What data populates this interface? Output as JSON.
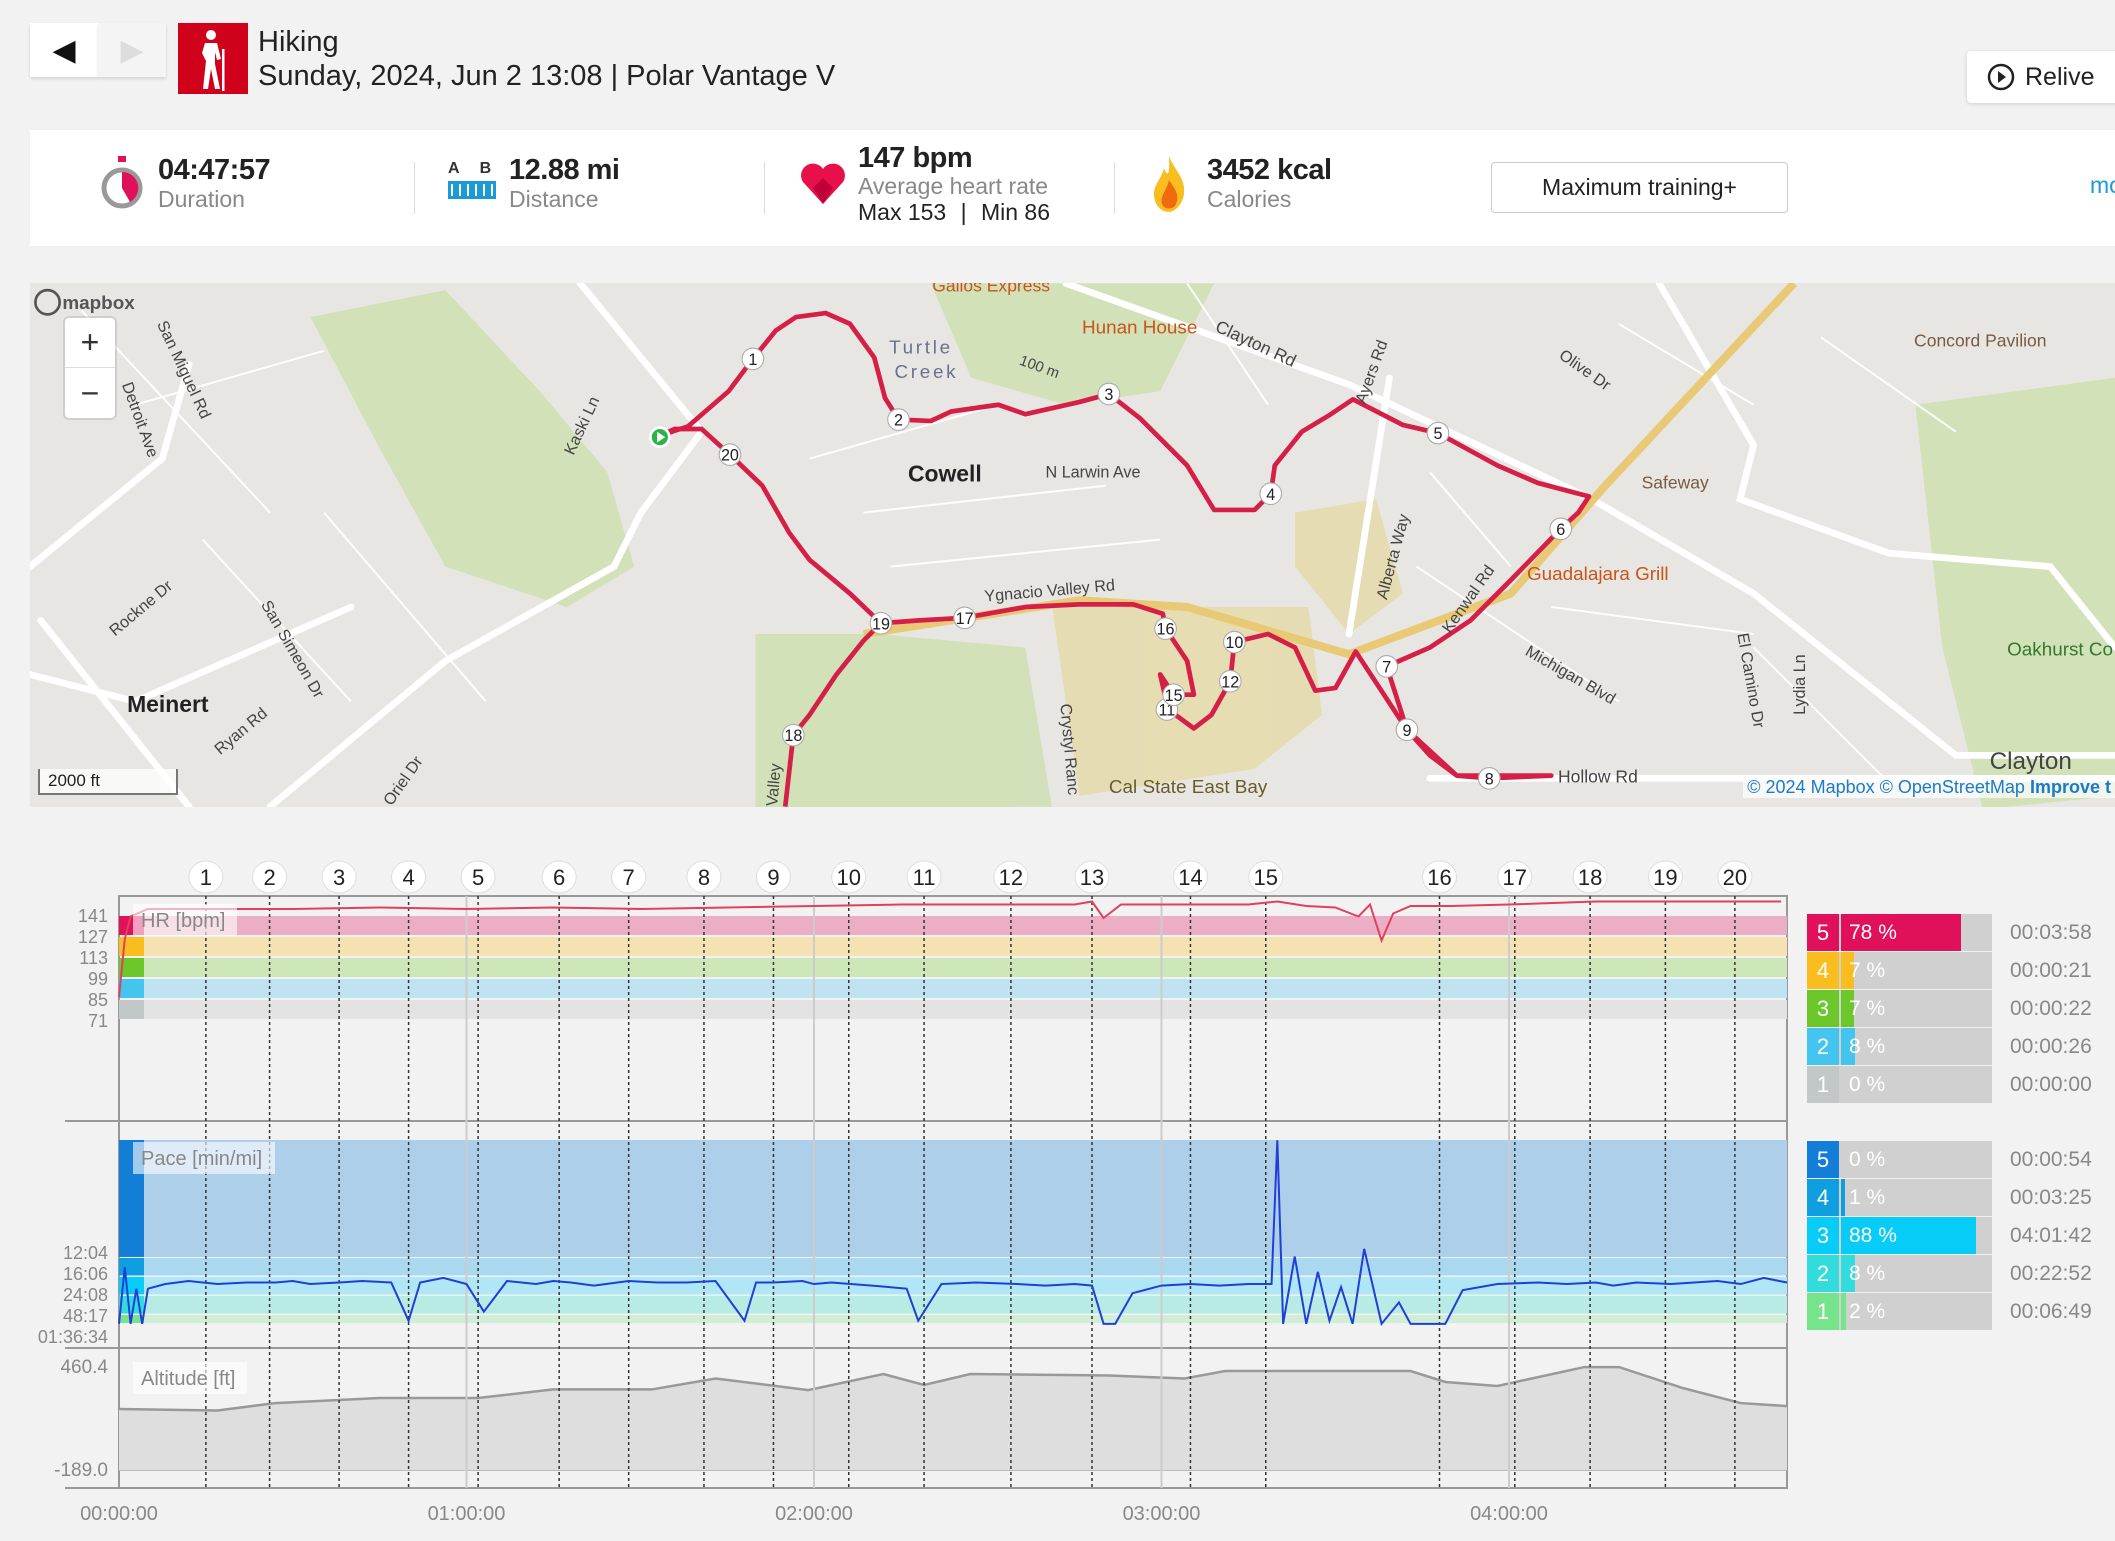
{
  "header": {
    "sport": "Hiking",
    "subtitle": "Sunday, 2024, Jun 2 13:08 | Polar Vantage V",
    "relive_label": "Relive",
    "prev_icon": "triangle-left",
    "next_icon": "triangle-right"
  },
  "summary": {
    "duration": {
      "value": "04:47:57",
      "label": "Duration"
    },
    "distance": {
      "value": "12.88 mi",
      "label": "Distance",
      "icon_text_a": "A",
      "icon_text_b": "B"
    },
    "heart_rate": {
      "value": "147 bpm",
      "label": "Average heart rate",
      "max": "Max 153",
      "min": "Min 86",
      "sep": "|"
    },
    "calories": {
      "value": "3452 kcal",
      "label": "Calories"
    },
    "training_button": "Maximum training+",
    "more_link": "mo"
  },
  "map": {
    "zoom_in": "+",
    "zoom_out": "−",
    "scale": "2000 ft",
    "logo": "mapbox",
    "attribution": "© 2024 Mapbox © OpenStreetMap",
    "improve": "Improve t",
    "places": [
      "Cowell",
      "Meinert",
      "Turtle",
      "Creek",
      "Cal State East Bay",
      "Clayton",
      "Concord Pavilion",
      "Oakhurst Co"
    ],
    "pois": [
      "Gallos Express",
      "Hunan House",
      "Safeway",
      "Guadalajara Grill"
    ],
    "streets": [
      "San Miguel Rd",
      "Detroit Ave",
      "Kaski Ln",
      "Rockne Dr",
      "San Simeon Dr",
      "Ryan Rd",
      "Clayton Rd",
      "Ayers Rd",
      "Olive Dr",
      "N Larwin Ave",
      "Alberta Way",
      "Kenwal Rd",
      "Michigan Blvd",
      "El Camino Dr",
      "Lydia Ln",
      "Crystyl Ranc",
      "Hollow Rd",
      "Ygnacio Valley Rd",
      "Valley",
      "Oriel Dr",
      "100 m"
    ],
    "lap_markers": [
      "1",
      "2",
      "3",
      "4",
      "5",
      "6",
      "7",
      "8",
      "9",
      "10",
      "11",
      "12",
      "15",
      "16",
      "17",
      "18",
      "19",
      "20"
    ],
    "route_color": "#d51f47"
  },
  "chart_data": [
    {
      "type": "line",
      "title": "HR [bpm]",
      "yticks": [
        "141",
        "127",
        "113",
        "99",
        "85",
        "71"
      ],
      "series": [
        {
          "x_min": [
            0,
            1,
            2,
            5,
            15,
            30,
            45,
            60,
            75,
            90,
            105,
            120,
            135,
            150,
            165,
            168,
            170,
            173,
            180,
            195,
            200,
            205,
            210,
            214,
            216,
            218,
            220,
            223,
            230,
            240,
            255,
            270,
            287
          ],
          "y": [
            86,
            125,
            140,
            145,
            145,
            145,
            146,
            145,
            146,
            145,
            146,
            147,
            148,
            148,
            148,
            150,
            139,
            148,
            148,
            148,
            150,
            147,
            146,
            140,
            148,
            124,
            142,
            147,
            147,
            148,
            150,
            150,
            150
          ]
        }
      ],
      "zones": [
        {
          "zone": "5",
          "color": "#e0105a",
          "band": "#ecaec4"
        },
        {
          "zone": "4",
          "color": "#f9bd1f",
          "band": "#f5e2b2"
        },
        {
          "zone": "3",
          "color": "#6cc72b",
          "band": "#cee7b9"
        },
        {
          "zone": "2",
          "color": "#43c5ef",
          "band": "#bfe3f1"
        },
        {
          "zone": "1",
          "color": "#c2c8c8",
          "band": "#e3e3e3"
        }
      ]
    },
    {
      "type": "line",
      "title": "Pace [min/mi]",
      "yticks": [
        "12:04",
        "16:06",
        "24:08",
        "48:17",
        "01:36:34"
      ],
      "series": [
        {
          "x_min": [
            0,
            1,
            2,
            3,
            4,
            5,
            8,
            12,
            17,
            22,
            27,
            30,
            33,
            38,
            42,
            47,
            50,
            52,
            56,
            60,
            63,
            67,
            72,
            75,
            78,
            82,
            88,
            93,
            98,
            103,
            108,
            110,
            113,
            118,
            120,
            123,
            130,
            136,
            138,
            142,
            148,
            155,
            160,
            165,
            168,
            170,
            172,
            175,
            180,
            185,
            190,
            195,
            199,
            200,
            201,
            203,
            205,
            207,
            209,
            211,
            213,
            215,
            218,
            221,
            223,
            226,
            229,
            232,
            238,
            245,
            250,
            255,
            258,
            262,
            268,
            272,
            276,
            280,
            284,
            288
          ],
          "mph": [
            0.6,
            4.3,
            0.6,
            2.9,
            0.6,
            2.9,
            3.2,
            3.4,
            3.2,
            3.3,
            3.3,
            3.4,
            3.2,
            3.3,
            3.4,
            3.3,
            0.8,
            3.3,
            3.6,
            3.2,
            1.4,
            3.4,
            3.2,
            3.4,
            3.3,
            3.1,
            3.4,
            3.3,
            3.3,
            3.4,
            0.8,
            3.3,
            3.3,
            3.4,
            3.2,
            3.3,
            3.1,
            2.9,
            0.8,
            3.2,
            3.3,
            3.2,
            3.1,
            3.2,
            3.1,
            0.6,
            0.6,
            2.6,
            3.1,
            3.2,
            3.1,
            3.2,
            3.2,
            12.6,
            0.6,
            5.0,
            0.6,
            4.0,
            0.8,
            3.0,
            0.6,
            5.5,
            0.6,
            2.0,
            0.6,
            0.6,
            0.6,
            2.8,
            3.2,
            3.3,
            3.2,
            3.3,
            3.1,
            3.3,
            3.2,
            3.3,
            3.4,
            3.2,
            3.6,
            3.3
          ]
        }
      ],
      "zones": [
        {
          "zone": "5",
          "color": "#137ed8",
          "band": "#aecfea"
        },
        {
          "zone": "4",
          "color": "#0f9fe0",
          "band": "#a9d8ef"
        },
        {
          "zone": "3",
          "color": "#08ccf8",
          "band": "#b0e7f6"
        },
        {
          "zone": "2",
          "color": "#33dcdc",
          "band": "#b8ebe4"
        },
        {
          "zone": "1",
          "color": "#76e48a",
          "band": "#d0eed6"
        }
      ]
    },
    {
      "type": "area",
      "title": "Altitude [ft]",
      "yticks": [
        "460.4",
        "-189.0"
      ],
      "ylim": [
        -189.0,
        460.4
      ],
      "series": [
        {
          "x_min": [
            0,
            17,
            27,
            45,
            62,
            75,
            92,
            103,
            119,
            132,
            139,
            147,
            171,
            184,
            191,
            223,
            229,
            238,
            253,
            259,
            270,
            280,
            288
          ],
          "y": [
            196,
            186,
            233,
            265,
            265,
            319,
            319,
            388,
            315,
            416,
            347,
            416,
            407,
            388,
            435,
            435,
            366,
            341,
            460,
            460,
            328,
            233,
            214
          ]
        }
      ]
    }
  ],
  "time_axis": {
    "ticks": [
      "00:00:00",
      "01:00:00",
      "02:00:00",
      "03:00:00",
      "04:00:00"
    ],
    "total": "04:47:57"
  },
  "laps": {
    "labels": [
      "1",
      "2",
      "3",
      "4",
      "5",
      "6",
      "7",
      "8",
      "9",
      "10",
      "11",
      "12",
      "13",
      "14",
      "15",
      "16",
      "17",
      "18",
      "19",
      "20"
    ],
    "end_min": [
      15,
      26,
      38,
      50,
      62,
      76,
      88,
      101,
      113,
      126,
      139,
      154,
      168,
      185,
      198,
      228,
      241,
      254,
      267,
      279
    ]
  },
  "hr_zones": [
    {
      "zone": "5",
      "percent": 78,
      "pct_label": "78 %",
      "time": "00:03:58",
      "color": "#e0105a"
    },
    {
      "zone": "4",
      "percent": 7,
      "pct_label": "7 %",
      "time": "00:00:21",
      "color": "#f9bd1f"
    },
    {
      "zone": "3",
      "percent": 7,
      "pct_label": "7 %",
      "time": "00:00:22",
      "color": "#6cc72b"
    },
    {
      "zone": "2",
      "percent": 8,
      "pct_label": "8 %",
      "time": "00:00:26",
      "color": "#43c5ef"
    },
    {
      "zone": "1",
      "percent": 0,
      "pct_label": "0 %",
      "time": "00:00:00",
      "color": "#c2c8c8"
    }
  ],
  "pace_zones": [
    {
      "zone": "5",
      "percent": 0,
      "pct_label": "0 %",
      "time": "00:00:54",
      "color": "#137ed8"
    },
    {
      "zone": "4",
      "percent": 1,
      "pct_label": "1 %",
      "time": "00:03:25",
      "color": "#0f9fe0"
    },
    {
      "zone": "3",
      "percent": 88,
      "pct_label": "88 %",
      "time": "04:01:42",
      "color": "#08ccf8"
    },
    {
      "zone": "2",
      "percent": 8,
      "pct_label": "8 %",
      "time": "00:22:52",
      "color": "#33dcdc"
    },
    {
      "zone": "1",
      "percent": 2,
      "pct_label": "2 %",
      "time": "00:06:49",
      "color": "#76e48a"
    }
  ]
}
